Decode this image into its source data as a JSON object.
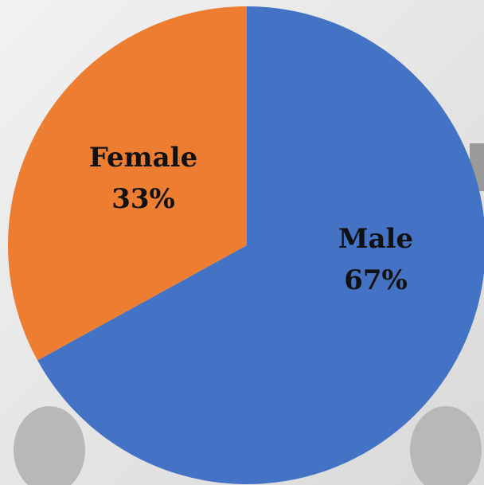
{
  "chart_data": {
    "type": "pie",
    "categories": [
      "Male",
      "Female"
    ],
    "values": [
      67,
      33
    ],
    "value_labels": [
      "67%",
      "33%"
    ],
    "colors": [
      "#4472c4",
      "#ed7d31"
    ]
  }
}
